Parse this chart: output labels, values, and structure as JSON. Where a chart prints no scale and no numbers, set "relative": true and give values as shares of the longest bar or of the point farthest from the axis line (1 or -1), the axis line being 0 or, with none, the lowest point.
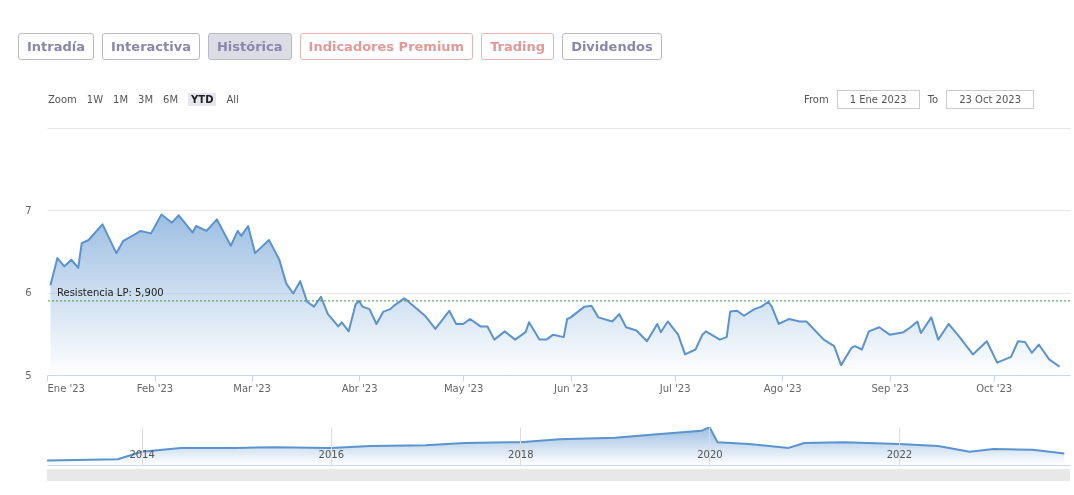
{
  "chart_data": [
    {
      "type": "area",
      "annotations": [
        "Intradía",
        "Interactiva",
        "Histórica",
        "Indicadores Premium",
        "Trading",
        "Dividendos",
        "Zoom",
        "1W",
        "1M",
        "3M",
        "6M",
        "YTD",
        "All",
        "From",
        "1 Ene 2023",
        "To",
        "23 Oct 2023"
      ],
      "x": [
        "2023-01-02",
        "2023-01-04",
        "2023-01-06",
        "2023-01-08",
        "2023-01-10",
        "2023-01-11",
        "2023-01-13",
        "2023-01-17",
        "2023-01-21",
        "2023-01-23",
        "2023-01-26",
        "2023-01-28",
        "2023-01-31",
        "2023-02-03",
        "2023-02-06",
        "2023-02-08",
        "2023-02-12",
        "2023-02-13",
        "2023-02-16",
        "2023-02-19",
        "2023-02-23",
        "2023-02-25",
        "2023-02-26",
        "2023-02-28",
        "2023-03-02",
        "2023-03-06",
        "2023-03-09",
        "2023-03-11",
        "2023-03-13",
        "2023-03-15",
        "2023-03-17",
        "2023-03-19",
        "2023-03-21",
        "2023-03-23",
        "2023-03-26",
        "2023-03-27",
        "2023-03-29",
        "2023-03-31",
        "2023-04-01",
        "2023-04-02",
        "2023-04-04",
        "2023-04-06",
        "2023-04-08",
        "2023-04-10",
        "2023-04-11",
        "2023-04-14",
        "2023-04-15",
        "2023-04-20",
        "2023-04-23",
        "2023-04-27",
        "2023-04-29",
        "2023-05-01",
        "2023-05-03",
        "2023-05-06",
        "2023-05-08",
        "2023-05-10",
        "2023-05-13",
        "2023-05-16",
        "2023-05-19",
        "2023-05-20",
        "2023-05-23",
        "2023-05-25",
        "2023-05-27",
        "2023-05-30",
        "2023-05-31",
        "2023-06-01",
        "2023-06-05",
        "2023-06-07",
        "2023-06-09",
        "2023-06-13",
        "2023-06-15",
        "2023-06-17",
        "2023-06-20",
        "2023-06-23",
        "2023-06-26",
        "2023-06-27",
        "2023-06-29",
        "2023-07-02",
        "2023-07-04",
        "2023-07-07",
        "2023-07-09",
        "2023-07-10",
        "2023-07-14",
        "2023-07-16",
        "2023-07-17",
        "2023-07-19",
        "2023-07-21",
        "2023-07-24",
        "2023-07-26",
        "2023-07-28",
        "2023-07-29",
        "2023-07-31",
        "2023-08-03",
        "2023-08-06",
        "2023-08-08",
        "2023-08-13",
        "2023-08-16",
        "2023-08-18",
        "2023-08-21",
        "2023-08-22",
        "2023-08-24",
        "2023-08-26",
        "2023-08-29",
        "2023-09-01",
        "2023-09-05",
        "2023-09-07",
        "2023-09-09",
        "2023-09-10",
        "2023-09-13",
        "2023-09-15",
        "2023-09-18",
        "2023-09-21",
        "2023-09-25",
        "2023-09-29",
        "2023-10-02",
        "2023-10-06",
        "2023-10-08",
        "2023-10-10",
        "2023-10-12",
        "2023-10-14",
        "2023-10-17",
        "2023-10-20"
      ],
      "series": [
        {
          "color": "#5b93cf",
          "values": [
            6.09,
            6.42,
            6.32,
            6.4,
            6.3,
            6.6,
            6.64,
            6.83,
            6.48,
            6.63,
            6.7,
            6.75,
            6.72,
            6.95,
            6.85,
            6.94,
            6.73,
            6.81,
            6.75,
            6.89,
            6.57,
            6.75,
            6.69,
            6.81,
            6.48,
            6.64,
            6.4,
            6.11,
            5.99,
            6.14,
            5.89,
            5.83,
            5.95,
            5.74,
            5.59,
            5.64,
            5.53,
            5.86,
            5.9,
            5.83,
            5.8,
            5.62,
            5.77,
            5.8,
            5.84,
            5.93,
            5.9,
            5.72,
            5.56,
            5.78,
            5.62,
            5.62,
            5.68,
            5.59,
            5.59,
            5.43,
            5.53,
            5.43,
            5.52,
            5.64,
            5.43,
            5.43,
            5.49,
            5.46,
            5.68,
            5.7,
            5.83,
            5.84,
            5.7,
            5.65,
            5.74,
            5.58,
            5.54,
            5.41,
            5.62,
            5.52,
            5.65,
            5.49,
            5.25,
            5.31,
            5.49,
            5.53,
            5.43,
            5.46,
            5.77,
            5.78,
            5.72,
            5.8,
            5.83,
            5.89,
            5.83,
            5.62,
            5.68,
            5.65,
            5.65,
            5.43,
            5.35,
            5.12,
            5.33,
            5.35,
            5.31,
            5.53,
            5.58,
            5.49,
            5.52,
            5.58,
            5.65,
            5.51,
            5.7,
            5.43,
            5.62,
            5.47,
            5.25,
            5.41,
            5.15,
            5.22,
            5.41,
            5.4,
            5.27,
            5.37,
            5.19,
            5.1
          ]
        }
      ],
      "xlim": [
        "2023-01-01",
        "2023-10-23"
      ],
      "xticks": [
        {
          "value": "2023-01-01",
          "label": "Ene '23"
        },
        {
          "value": "2023-02-01",
          "label": "Feb '23"
        },
        {
          "value": "2023-03-01",
          "label": "Mar '23"
        },
        {
          "value": "2023-04-01",
          "label": "Abr '23"
        },
        {
          "value": "2023-05-01",
          "label": "May '23"
        },
        {
          "value": "2023-06-01",
          "label": "Jun '23"
        },
        {
          "value": "2023-07-01",
          "label": "Jul '23"
        },
        {
          "value": "2023-08-01",
          "label": "Ago '23"
        },
        {
          "value": "2023-09-01",
          "label": "Sep '23"
        },
        {
          "value": "2023-10-01",
          "label": "Oct '23"
        }
      ],
      "ylim": [
        5,
        8
      ],
      "yticks": [
        5,
        6,
        7,
        {
          "value": 8,
          "label": null
        }
      ],
      "grid": "y",
      "ref_lines": [
        {
          "axis": "y",
          "value": 5.9,
          "label": "Resistencia LP: 5,900",
          "color": "#3c9a3c",
          "line_style": "dotted"
        }
      ]
    },
    {
      "type": "area",
      "relative": true,
      "tick_labels": "x",
      "grid": "x",
      "x": [
        "2013-01",
        "2013-10",
        "2014-01",
        "2014-06",
        "2015-01",
        "2015-06",
        "2016-01",
        "2016-06",
        "2017-01",
        "2017-06",
        "2018-01",
        "2018-06",
        "2019-01",
        "2019-06",
        "2019-12",
        "2020-01",
        "2020-02",
        "2020-06",
        "2020-11",
        "2021-01",
        "2021-06",
        "2022-01",
        "2022-06",
        "2022-10",
        "2023-01",
        "2023-06",
        "2023-10"
      ],
      "series": [
        {
          "color": "#5b93cf",
          "values": [
            0.12,
            0.15,
            0.35,
            0.45,
            0.45,
            0.47,
            0.45,
            0.5,
            0.52,
            0.58,
            0.6,
            0.68,
            0.72,
            0.8,
            0.9,
            1,
            0.6,
            0.55,
            0.45,
            0.58,
            0.6,
            0.55,
            0.5,
            0.35,
            0.42,
            0.4,
            0.3
          ]
        }
      ],
      "xlim": [
        "2013-01-01",
        "2023-10-23"
      ],
      "xticks": [
        {
          "value": "2014-01-01",
          "label": "2014"
        },
        {
          "value": "2016-01-01",
          "label": "2016"
        },
        {
          "value": "2018-01-01",
          "label": "2018"
        },
        {
          "value": "2020-01-01",
          "label": "2020"
        },
        {
          "value": "2022-01-01",
          "label": "2022"
        }
      ]
    }
  ]
}
